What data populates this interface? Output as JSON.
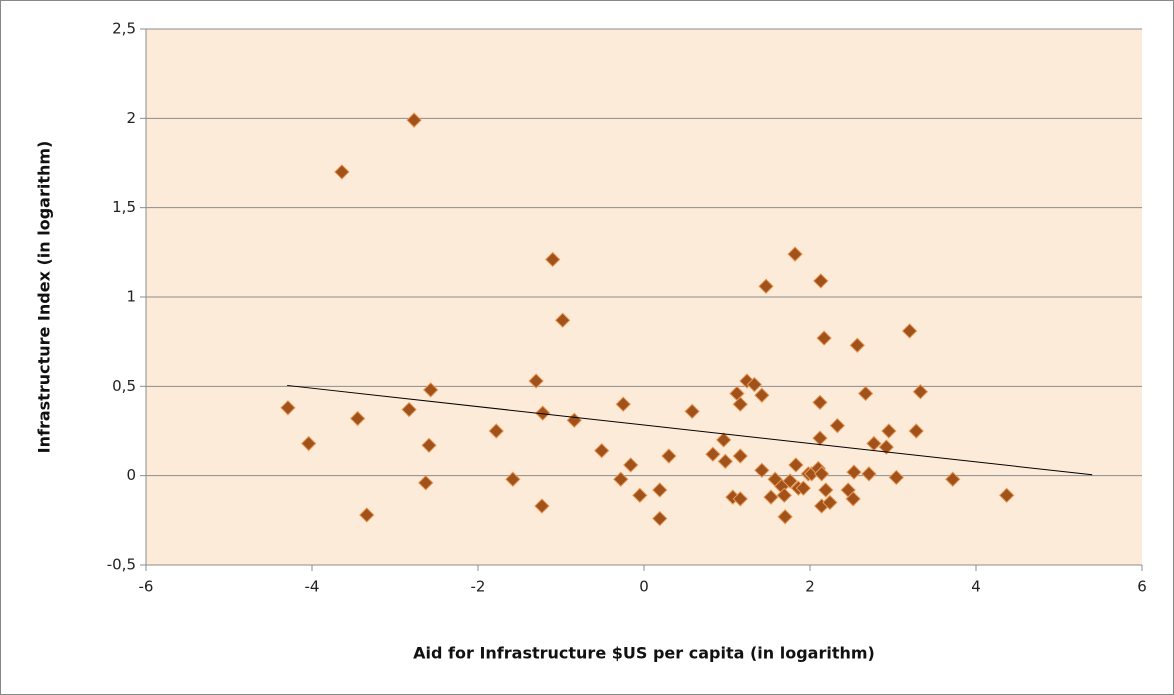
{
  "chart_data": {
    "type": "scatter",
    "x_label": "Aid for Infrastructure $US per capita (in logarithm)",
    "y_label": "Infrastructure Index (in logarithm)",
    "xlim": [
      -6,
      6
    ],
    "ylim": [
      -0.5,
      2.5
    ],
    "xticks": [
      -6,
      -4,
      -2,
      0,
      2,
      4,
      6
    ],
    "yticks": [
      {
        "value": -0.5,
        "label": "-0,5"
      },
      0,
      {
        "value": 0.5,
        "label": "0,5"
      },
      1,
      {
        "value": 1.5,
        "label": "1,5"
      },
      2,
      {
        "value": 2.5,
        "label": "2,5"
      }
    ],
    "grid": true,
    "color": "#a0521a",
    "x": [
      -4.29,
      -4.04,
      -3.64,
      -3.45,
      -3.34,
      -2.83,
      -2.77,
      -2.57,
      -2.59,
      -2.63,
      -1.78,
      -1.58,
      -1.3,
      -1.22,
      -1.23,
      -1.1,
      -0.98,
      -0.84,
      -0.51,
      -0.25,
      -0.28,
      -0.16,
      -0.05,
      0.19,
      0.19,
      0.3,
      0.58,
      0.83,
      0.96,
      0.98,
      1.07,
      1.12,
      1.16,
      1.16,
      1.16,
      1.24,
      1.33,
      1.42,
      1.47,
      1.42,
      1.53,
      1.58,
      1.66,
      1.69,
      1.7,
      1.76,
      1.82,
      1.83,
      1.86,
      1.92,
      1.98,
      2.02,
      2.1,
      2.12,
      2.12,
      2.13,
      2.14,
      2.14,
      2.17,
      2.19,
      2.24,
      2.33,
      2.46,
      2.52,
      2.53,
      2.57,
      2.67,
      2.71,
      2.77,
      2.92,
      2.95,
      3.04,
      3.2,
      3.28,
      3.33,
      3.72,
      4.37
    ],
    "values": [
      0.38,
      0.18,
      1.7,
      0.32,
      -0.22,
      0.37,
      1.99,
      0.48,
      0.17,
      -0.04,
      0.25,
      -0.02,
      0.53,
      0.35,
      -0.17,
      1.21,
      0.87,
      0.31,
      0.14,
      0.4,
      -0.02,
      0.06,
      -0.11,
      -0.08,
      -0.24,
      0.11,
      0.36,
      0.12,
      0.2,
      0.08,
      -0.12,
      0.46,
      0.4,
      -0.13,
      0.11,
      0.53,
      0.51,
      0.45,
      1.06,
      0.03,
      -0.12,
      -0.02,
      -0.06,
      -0.11,
      -0.23,
      -0.03,
      1.24,
      0.06,
      -0.07,
      -0.07,
      0.01,
      0.01,
      0.04,
      0.21,
      0.41,
      1.09,
      0.01,
      -0.17,
      0.77,
      -0.08,
      -0.15,
      0.28,
      -0.08,
      -0.13,
      0.02,
      0.73,
      0.46,
      0.01,
      0.18,
      0.16,
      0.25,
      -0.01,
      0.81,
      0.25,
      0.47,
      -0.02,
      -0.11
    ],
    "trendline": {
      "x": [
        -4.3,
        5.4
      ],
      "y": [
        0.505,
        0.005
      ],
      "color": "#000000"
    }
  }
}
